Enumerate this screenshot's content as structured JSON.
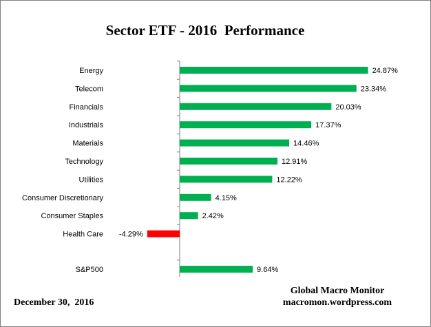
{
  "chart_data": {
    "type": "bar",
    "orientation": "horizontal",
    "title": "Sector ETF - 2016  Performance",
    "categories": [
      "Energy",
      "Telecom",
      "Financials",
      "Industrials",
      "Materials",
      "Technology",
      "Utilities",
      "Consumer Discretionary",
      "Consumer Staples",
      "Health Care",
      "S&P500"
    ],
    "values": [
      24.87,
      23.34,
      20.03,
      17.37,
      14.46,
      12.91,
      12.22,
      4.15,
      2.42,
      -4.29,
      9.64
    ],
    "value_labels": [
      "24.87%",
      "23.34%",
      "20.03%",
      "17.37%",
      "14.46%",
      "12.91%",
      "12.22%",
      "4.15%",
      "2.42%",
      "-4.29%",
      "9.64%"
    ],
    "positive_color": "#00b050",
    "negative_color": "#ff0000",
    "xlim": [
      -8,
      30
    ],
    "grid": false,
    "legend": "none"
  },
  "footer": {
    "date": "December 30,  2016",
    "source_line1": "Global Macro Monitor",
    "source_line2": "macromon.wordpress.com"
  }
}
